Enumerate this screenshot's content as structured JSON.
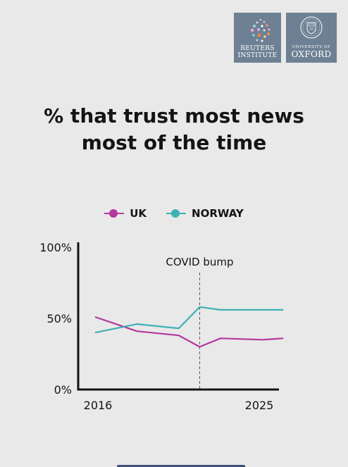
{
  "logos": {
    "reuters": {
      "line1": "REUTERS",
      "line2": "INSTITUTE"
    },
    "oxford": {
      "line1": "UNIVERSITY OF",
      "line2": "OXFORD"
    }
  },
  "title_lines": [
    "% that trust most news",
    "most of the time"
  ],
  "colors": {
    "uk": "#b5379f",
    "norway": "#3fb0b5",
    "axis": "#141414",
    "background": "#e9e9e9"
  },
  "chart_data": {
    "type": "line",
    "title": "% that trust most news most of the time",
    "x": [
      2016,
      2017,
      2018,
      2019,
      2020,
      2021,
      2022,
      2023,
      2024,
      2025
    ],
    "series": [
      {
        "name": "UK",
        "values": [
          51,
          null,
          41,
          null,
          38,
          30,
          36,
          null,
          35,
          36
        ]
      },
      {
        "name": "NORWAY",
        "values": [
          40,
          null,
          46,
          null,
          43,
          58,
          56,
          null,
          56,
          56
        ]
      }
    ],
    "ylim": [
      0,
      100
    ],
    "yticks": [
      "0%",
      "50%",
      "100%"
    ],
    "xticks": [
      "2016",
      "2025"
    ],
    "annotation": {
      "label": "COVID bump",
      "x": 2021
    },
    "legend": "top",
    "grid": false
  }
}
